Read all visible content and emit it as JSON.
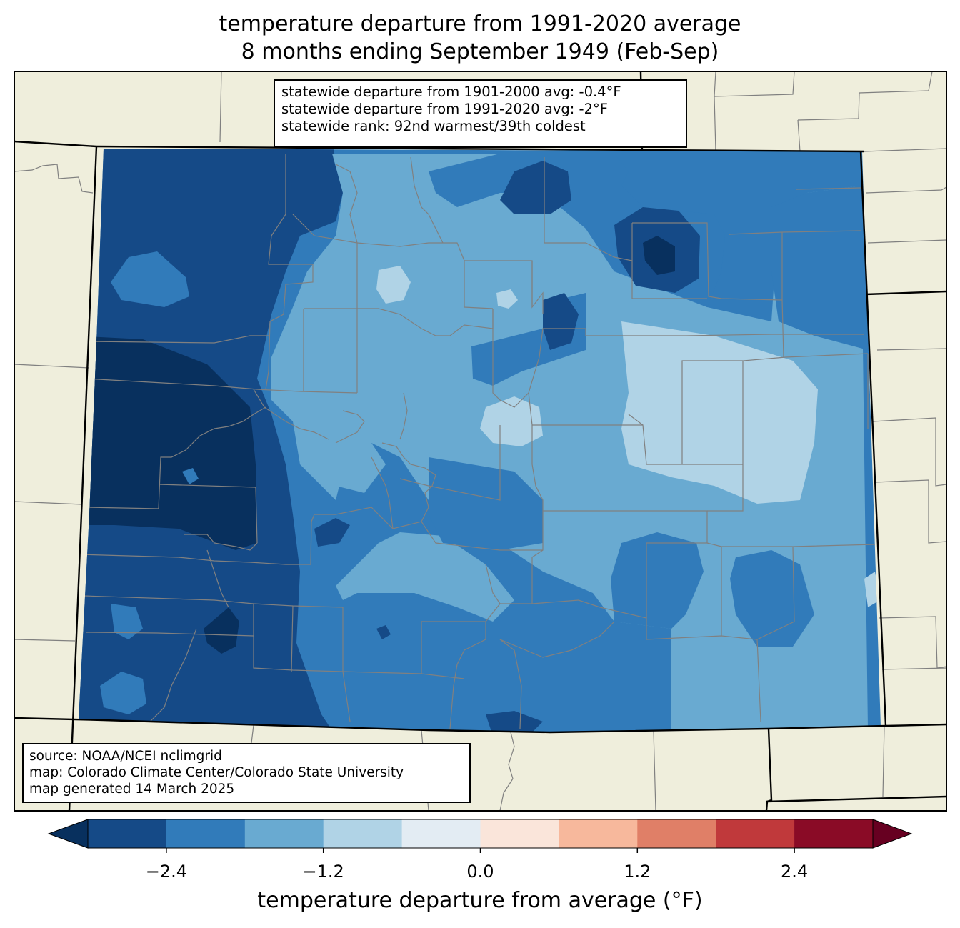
{
  "title": {
    "line1": "temperature departure from 1991-2020 average",
    "line2": "8 months ending September 1949 (Feb-Sep)"
  },
  "stats": {
    "line1": "statewide departure from 1901-2000 avg: -0.4°F",
    "line2": "statewide departure from 1991-2020 avg: -2°F",
    "line3": "statewide rank: 92nd warmest/39th coldest"
  },
  "source": {
    "line1": "source: NOAA/NCEI nclimgrid",
    "line2": "map: Colorado Climate Center/Colorado State University",
    "line3": "map generated 14 March 2025"
  },
  "colorbar": {
    "label": "temperature departure from average (°F)",
    "ticks": [
      "−2.4",
      "−1.2",
      "0.0",
      "1.2",
      "2.4"
    ],
    "tick_values": [
      -2.4,
      -1.2,
      0.0,
      1.2,
      2.4
    ],
    "range": [
      -3.0,
      3.0
    ],
    "bin_edges": [
      -3.0,
      -2.4,
      -1.8,
      -1.2,
      -0.6,
      0.0,
      0.6,
      1.2,
      1.8,
      2.4,
      3.0
    ],
    "colors": [
      "#154a87",
      "#317bba",
      "#69aad1",
      "#b0d3e6",
      "#e3ecf3",
      "#fae5da",
      "#f7b89c",
      "#e07f67",
      "#c0393b",
      "#8a0b26"
    ],
    "under_color": "#08305e",
    "over_color": "#670021"
  },
  "colors": {
    "land": "#efeedc",
    "county_lines": "#808080",
    "state_lines": "#000000"
  }
}
